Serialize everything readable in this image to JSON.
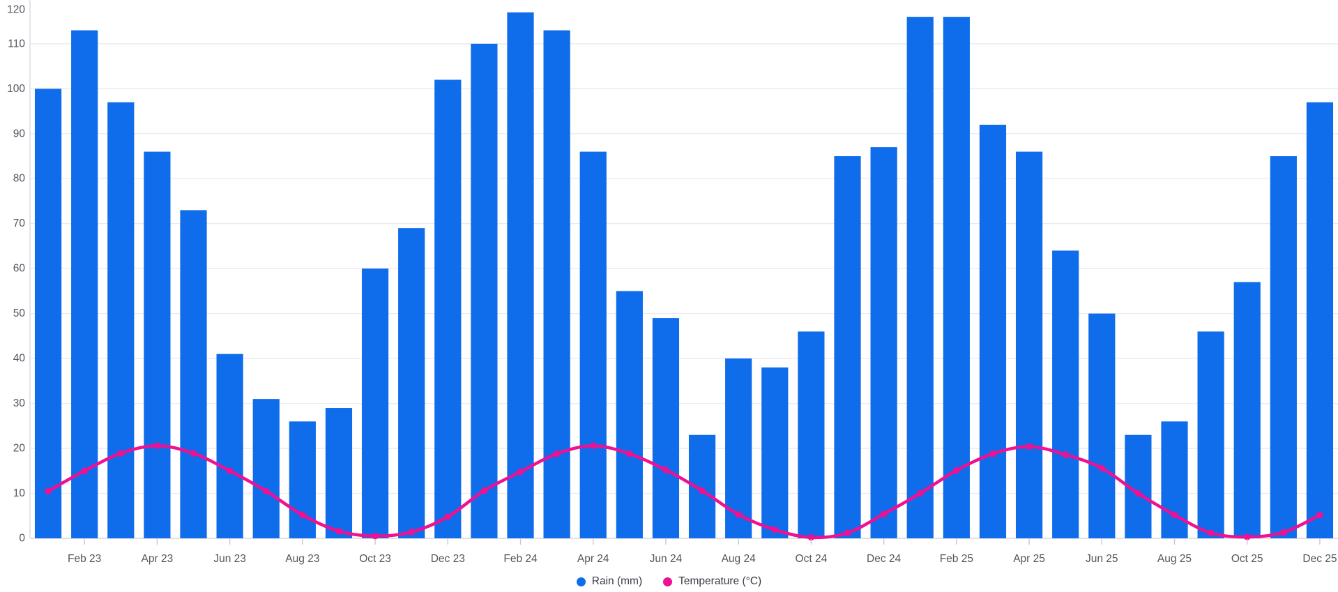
{
  "chart_data": {
    "type": "bar+line combo",
    "x": [
      "Jan 23",
      "Feb 23",
      "Mar 23",
      "Apr 23",
      "May 23",
      "Jun 23",
      "Jul 23",
      "Aug 23",
      "Sep 23",
      "Oct 23",
      "Nov 23",
      "Dec 23",
      "Jan 24",
      "Feb 24",
      "Mar 24",
      "Apr 24",
      "May 24",
      "Jun 24",
      "Jul 24",
      "Aug 24",
      "Sep 24",
      "Oct 24",
      "Nov 24",
      "Dec 24",
      "Jan 25",
      "Feb 25",
      "Mar 25",
      "Apr 25",
      "May 25",
      "Jun 25",
      "Jul 25",
      "Aug 25",
      "Sep 25",
      "Oct 25",
      "Nov 25",
      "Dec 25"
    ],
    "x_tick_labels": [
      "Feb 23",
      "Apr 23",
      "Jun 23",
      "Aug 23",
      "Oct 23",
      "Dec 23",
      "Feb 24",
      "Apr 24",
      "Jun 24",
      "Aug 24",
      "Oct 24",
      "Dec 24",
      "Feb 25",
      "Apr 25",
      "Jun 25",
      "Aug 25",
      "Oct 25",
      "Dec 25"
    ],
    "series": [
      {
        "name": "Rain (mm)",
        "type": "bar",
        "color": "#0f6cea",
        "values": [
          100,
          113,
          97,
          86,
          73,
          41,
          31,
          26,
          29,
          60,
          69,
          102,
          110,
          117,
          113,
          86,
          55,
          49,
          23,
          40,
          38,
          46,
          85,
          87,
          116,
          116,
          92,
          86,
          64,
          50,
          23,
          26,
          46,
          57,
          85,
          97
        ]
      },
      {
        "name": "Temperature (°C)",
        "type": "line",
        "color": "#ee1192",
        "values": [
          10.5,
          15,
          18.9,
          20.6,
          18.9,
          15,
          10.5,
          5.2,
          1.6,
          0.5,
          1.4,
          4.8,
          10.6,
          14.8,
          18.8,
          20.6,
          18.8,
          15.2,
          10.6,
          5.3,
          1.9,
          0.2,
          1.2,
          5.4,
          10,
          15.1,
          18.8,
          20.4,
          18.6,
          15.6,
          10,
          5.2,
          1.2,
          0.3,
          1.3,
          5.2
        ]
      }
    ],
    "title": "",
    "xlabel": "",
    "ylabel": "",
    "ylim": [
      0,
      120
    ],
    "y_ticks": [
      0,
      10,
      20,
      30,
      40,
      50,
      60,
      70,
      80,
      90,
      100,
      110,
      120
    ],
    "grid": true,
    "legend_position": "bottom-center"
  },
  "legend": {
    "rain_label": "Rain (mm)",
    "temperature_label": "Temperature (°C)"
  },
  "colors": {
    "rain_bar": "#0f6cea",
    "temperature_line": "#ee1192",
    "gridline": "#ebe9f2",
    "axis_line": "#d7d5dd",
    "tick_mark": "#c9c7cf",
    "axis_text": "#56545e",
    "legend_text": "#3b3946",
    "background": "#ffffff"
  }
}
